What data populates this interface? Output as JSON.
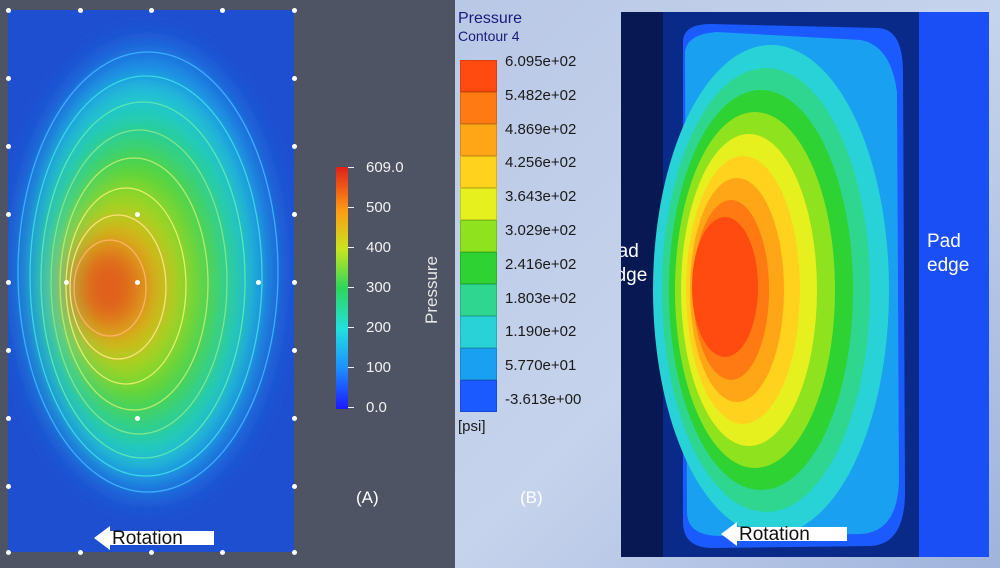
{
  "panel_a": {
    "colorbar": {
      "title": "Pressure",
      "ticks": [
        "609.0",
        "500",
        "400",
        "300",
        "200",
        "100",
        "0.0"
      ]
    },
    "rotation_label": "Rotation",
    "panel_label": "(A)"
  },
  "panel_b": {
    "title": "Pressure",
    "subtitle": "Contour 4",
    "legend_ticks": [
      "6.095e+02",
      "5.482e+02",
      "4.869e+02",
      "4.256e+02",
      "3.643e+02",
      "3.029e+02",
      "2.416e+02",
      "1.803e+02",
      "1.190e+02",
      "5.770e+01",
      "-3.613e+00"
    ],
    "legend_colors": [
      "#ff4a10",
      "#ff7a12",
      "#ffa616",
      "#ffd21e",
      "#e6f01e",
      "#8fe21e",
      "#2ed232",
      "#2ed68f",
      "#28d2d6",
      "#1aa0f0",
      "#1a5aff"
    ],
    "unit": "[psi]",
    "panel_label": "(B)",
    "pad_edge_left": [
      "Pad",
      "edge"
    ],
    "pad_edge_right": [
      "Pad",
      "edge"
    ],
    "rotation_label": "Rotation"
  }
}
